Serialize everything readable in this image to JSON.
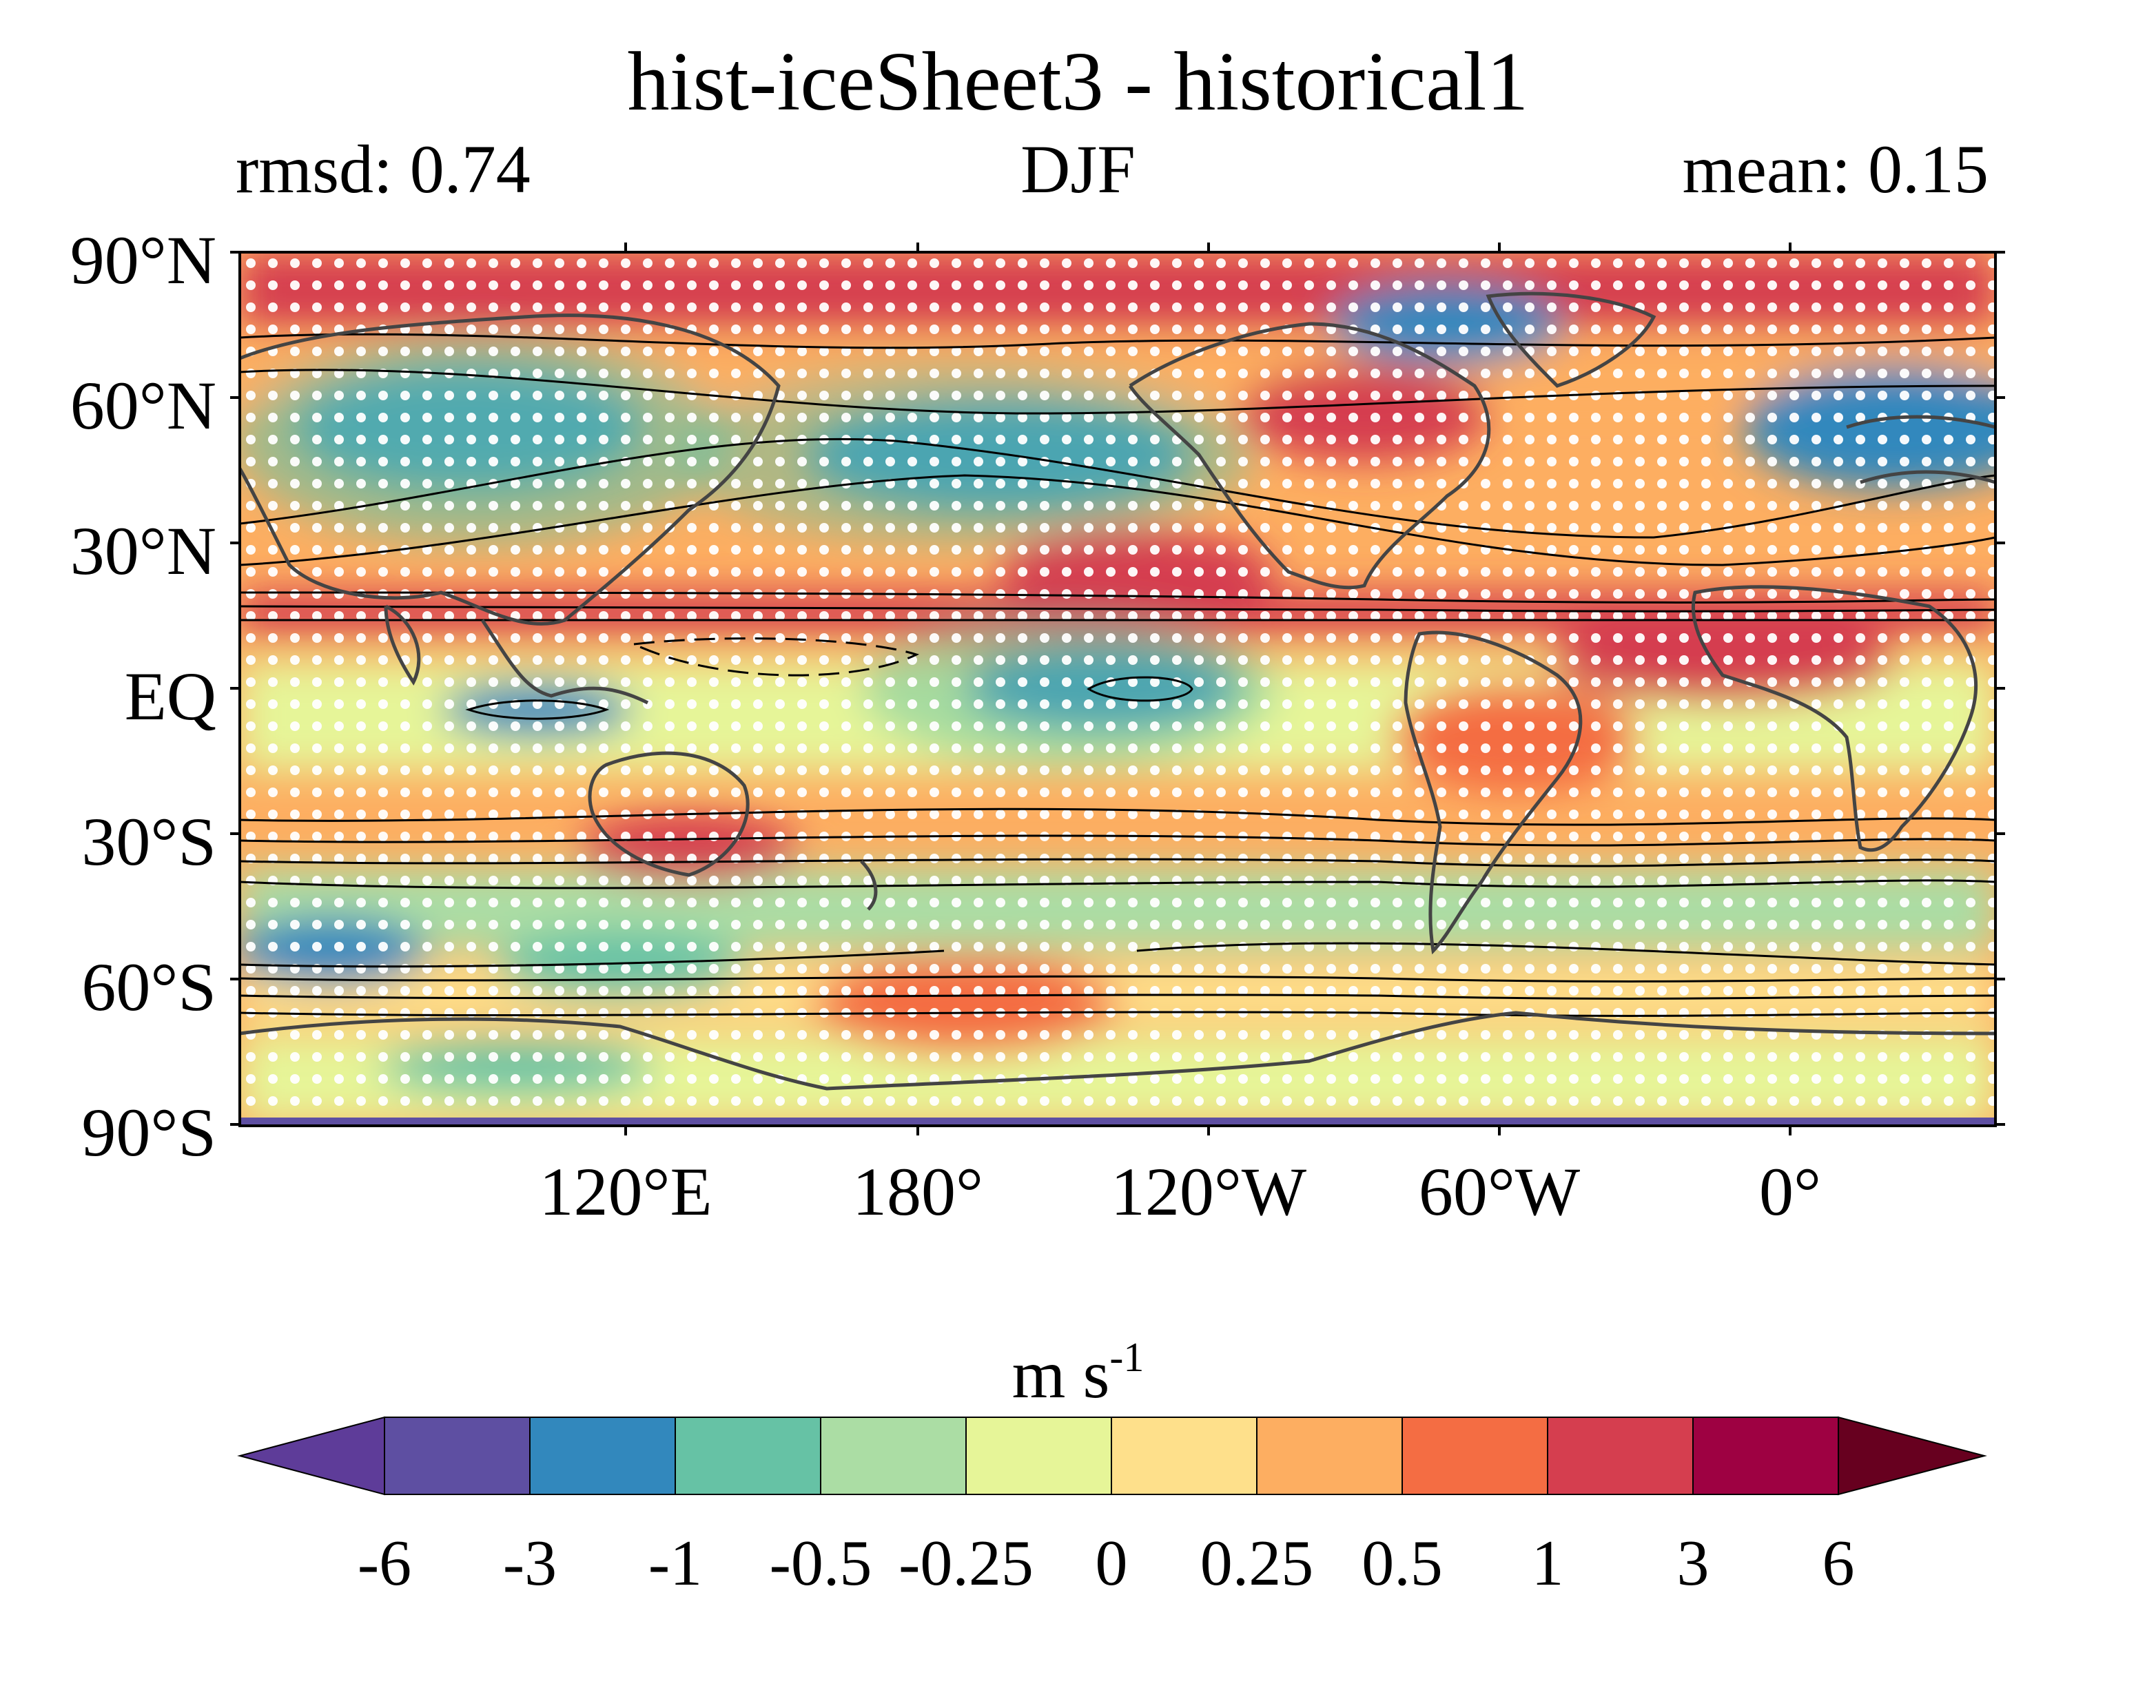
{
  "title": "hist-iceSheet3 - historical1",
  "stats": {
    "rmsd": "rmsd: 0.74",
    "season": "DJF",
    "mean": "mean: 0.15"
  },
  "lat_labels": [
    "90°N",
    "60°N",
    "30°N",
    "EQ",
    "30°S",
    "60°S",
    "90°S"
  ],
  "lon_labels": [
    "120°E",
    "180°",
    "120°W",
    "60°W",
    "0°"
  ],
  "colorbar": {
    "units_base": "m s",
    "units_exp": "-1",
    "labels": [
      "-6",
      "-3",
      "-1",
      "-0.5",
      "-0.25",
      "0",
      "0.25",
      "0.5",
      "1",
      "3",
      "6"
    ],
    "colors": [
      "#5e3c99",
      "#5e4fa2",
      "#3288bd",
      "#66c2a5",
      "#abdda4",
      "#e6f598",
      "#fee08b",
      "#fdae61",
      "#f46d43",
      "#d53e4f",
      "#9e0142",
      "#67001f"
    ]
  },
  "map_colors": {
    "land_outline": "#444444",
    "contour": "#000000",
    "stipple": "#ffffff"
  }
}
